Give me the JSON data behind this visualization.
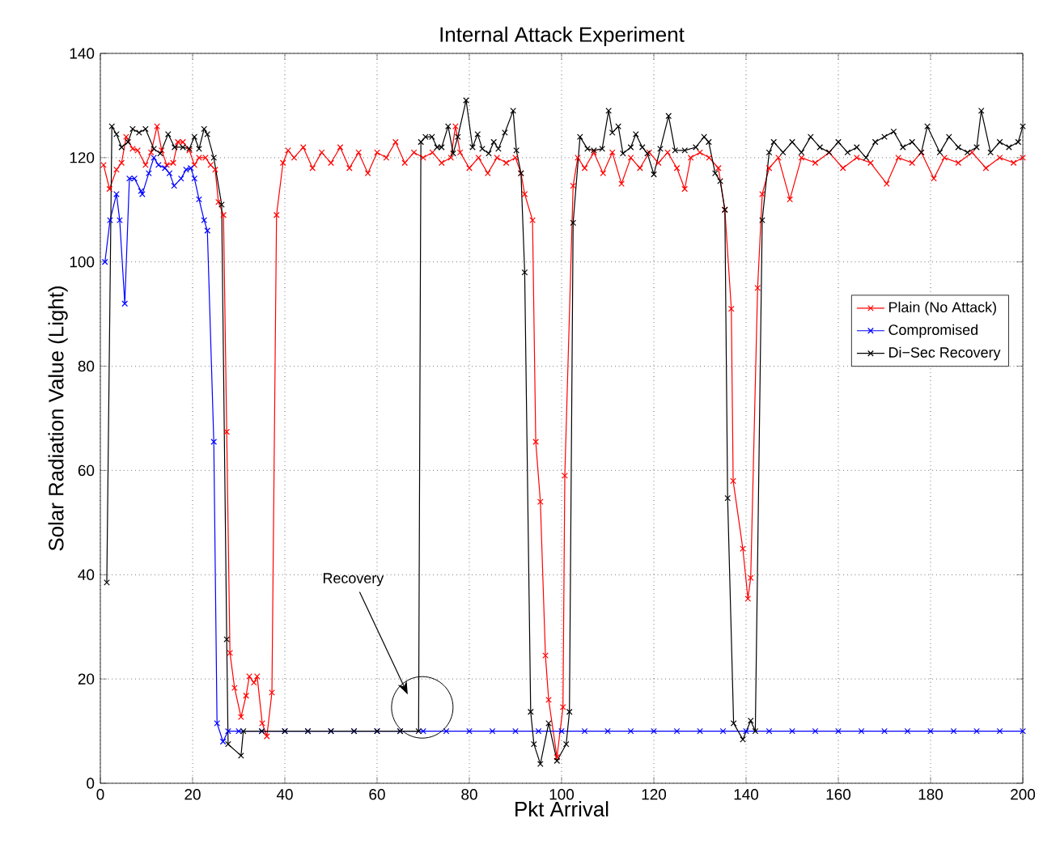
{
  "chart_data": {
    "type": "line",
    "title": "Internal Attack Experiment",
    "xlabel": "Pkt Arrival",
    "ylabel": "Solar Radiation Value (Light)",
    "xlim": [
      0,
      200
    ],
    "xticks": [
      0,
      20,
      40,
      60,
      80,
      100,
      120,
      140,
      160,
      180,
      200
    ],
    "ylim": [
      0,
      140
    ],
    "yticks": [
      0,
      20,
      40,
      60,
      80,
      100,
      120,
      140
    ],
    "grid": true,
    "legend": "right",
    "marker": "cross",
    "line_style": "solid",
    "annotations": [
      "Recovery"
    ],
    "series": [
      {
        "name": "Plain (No Attack)",
        "color": "#ff0000",
        "x": [
          0.7,
          2,
          3.5,
          4.6,
          5.6,
          7,
          8.1,
          9.8,
          11,
          12.3,
          13.3,
          14.4,
          15.8,
          16.8,
          17.9,
          19.3,
          20.4,
          21.4,
          22.8,
          23.9,
          24.9,
          25.6,
          26.7,
          27.4,
          28.1,
          29.1,
          30.5,
          31.6,
          32.3,
          33.3,
          34,
          35.1,
          36.1,
          37.2,
          38.2,
          39.6,
          40.7,
          42,
          44,
          46,
          48,
          50,
          52,
          54,
          56,
          58,
          60,
          62,
          64,
          66,
          68,
          70,
          72,
          74,
          76,
          77,
          78,
          80,
          82,
          84,
          86,
          88,
          90,
          91.2,
          92,
          93.7,
          94.4,
          95.4,
          96.5,
          97.2,
          99,
          100.3,
          100.7,
          102.5,
          103.5,
          105,
          107,
          109,
          111,
          113,
          115,
          117,
          119,
          121,
          123,
          125,
          126.7,
          128,
          130,
          132,
          134,
          135.4,
          136.8,
          137.2,
          139.3,
          140.4,
          141,
          142.5,
          143.5,
          145,
          147,
          149.5,
          152,
          155,
          158,
          161,
          164,
          167,
          170.5,
          173,
          176,
          178,
          180.7,
          183,
          186,
          189,
          192,
          195,
          198,
          200
        ],
        "values": [
          118.6,
          114,
          117.7,
          119,
          124,
          121.7,
          121.4,
          118.6,
          121,
          126,
          121.4,
          118.6,
          119,
          123,
          123,
          121.4,
          118.6,
          120,
          120,
          118.6,
          117.7,
          111.5,
          109,
          67.4,
          25,
          18.3,
          12.7,
          16.8,
          20.5,
          19.3,
          20.5,
          11.5,
          9,
          17.4,
          109,
          119,
          121.4,
          120,
          122,
          118,
          121,
          119,
          122,
          118,
          121,
          117,
          121,
          120,
          123,
          119,
          121,
          120,
          121,
          119,
          120,
          126,
          121,
          118,
          120,
          117,
          120,
          119,
          120,
          117,
          113,
          108,
          65.5,
          54,
          24.5,
          16,
          5,
          14.6,
          59,
          114.6,
          120,
          118,
          121,
          117,
          121,
          115,
          120,
          118,
          121,
          119,
          121,
          118,
          114,
          120,
          121,
          120,
          118,
          110,
          91,
          58,
          45,
          35.4,
          39.4,
          95,
          113,
          118,
          120,
          112,
          120,
          119,
          121,
          118,
          120,
          119,
          115,
          120,
          119,
          121,
          116,
          120,
          119,
          121,
          118,
          120,
          119,
          120
        ]
      },
      {
        "name": "Compromised",
        "color": "#0000ff",
        "x": [
          1,
          2.1,
          3.5,
          4.2,
          5.3,
          6.3,
          7.4,
          8.8,
          9.1,
          10.5,
          11.6,
          12.6,
          14,
          15,
          16,
          17.5,
          18.6,
          19.6,
          20.4,
          21.4,
          22.5,
          23.2,
          24.6,
          25.3,
          26.6,
          27.7,
          30,
          35,
          40,
          45,
          50,
          55,
          60,
          65,
          70,
          75,
          80,
          85,
          90,
          95,
          100,
          105,
          110,
          115,
          120,
          125,
          130,
          135,
          140,
          145,
          150,
          155,
          160,
          165,
          170,
          175,
          180,
          185,
          190,
          195,
          200
        ],
        "values": [
          100,
          108,
          113,
          108,
          92,
          116,
          116,
          113.6,
          113,
          117,
          120,
          118.6,
          118,
          117,
          114.6,
          116,
          117.7,
          118,
          116,
          112,
          108,
          106,
          65.5,
          11.5,
          8,
          10,
          10,
          10,
          10,
          10,
          10,
          10,
          10,
          10,
          10,
          10,
          10,
          10,
          10,
          10,
          10,
          10,
          10,
          10,
          10,
          10,
          10,
          10,
          10,
          10,
          10,
          10,
          10,
          10,
          10,
          10,
          10,
          10,
          10,
          10,
          10
        ]
      },
      {
        "name": "Di−Sec Recovery",
        "color": "#000000",
        "x": [
          1.4,
          2.5,
          3.5,
          4.6,
          6,
          7,
          8.4,
          9.8,
          11.6,
          13,
          14.7,
          16.1,
          17.9,
          19.3,
          20.4,
          21.4,
          22.5,
          23.2,
          24.6,
          26.3,
          27.4,
          27.7,
          30.5,
          31,
          35,
          40,
          45,
          50,
          55,
          60,
          65,
          69,
          69.5,
          70.5,
          71.9,
          73,
          74,
          75.4,
          76.5,
          77.5,
          79.3,
          80.7,
          81.8,
          82.8,
          84.2,
          85.3,
          86.3,
          87.7,
          89.5,
          90.2,
          91.2,
          92,
          93.3,
          94,
          95.4,
          97.2,
          99,
          101,
          101.7,
          102.5,
          104,
          105.6,
          107,
          108.8,
          110.2,
          111,
          112.3,
          113.3,
          115,
          116.1,
          117.5,
          118.6,
          120,
          121.4,
          123.2,
          124.6,
          126.7,
          129.1,
          130.9,
          131.9,
          133.3,
          134.4,
          135.4,
          136,
          137.3,
          139.3,
          141,
          142,
          143.5,
          145,
          146,
          148,
          150,
          152,
          154,
          156,
          158,
          160,
          162,
          164,
          166,
          168,
          170,
          172,
          174,
          176,
          178,
          179.3,
          182,
          184,
          186,
          188,
          190,
          191,
          193,
          195,
          197,
          199,
          200
        ],
        "values": [
          38.5,
          126,
          124.5,
          122,
          123,
          125.5,
          124.8,
          125.5,
          121.7,
          120.8,
          124.5,
          122,
          122,
          121.7,
          124,
          121.7,
          125.5,
          124.5,
          120,
          111,
          27.6,
          7.5,
          5.3,
          10,
          10,
          10,
          10,
          10,
          10,
          10,
          10,
          10,
          123,
          124,
          124,
          122,
          122,
          126,
          120.8,
          124,
          131,
          122,
          124.5,
          121.7,
          120.8,
          123,
          121.7,
          124.8,
          129,
          121.4,
          117,
          98,
          13.7,
          7.5,
          3.7,
          11.5,
          4.3,
          7.5,
          13.7,
          107.5,
          124,
          121.7,
          121.4,
          121.7,
          129,
          124.8,
          126,
          120.8,
          122,
          124.5,
          122,
          120.8,
          116.8,
          121.7,
          128,
          121.4,
          121.4,
          122,
          124,
          123,
          117,
          115.5,
          110,
          54.7,
          11.5,
          8.4,
          12,
          10,
          108,
          121,
          123,
          121,
          123,
          121,
          124,
          122,
          121,
          123,
          121,
          122,
          120,
          123,
          124,
          125,
          122,
          123,
          121,
          126,
          121,
          124,
          122,
          121,
          122,
          129,
          121,
          123,
          122,
          123,
          126
        ]
      }
    ]
  }
}
